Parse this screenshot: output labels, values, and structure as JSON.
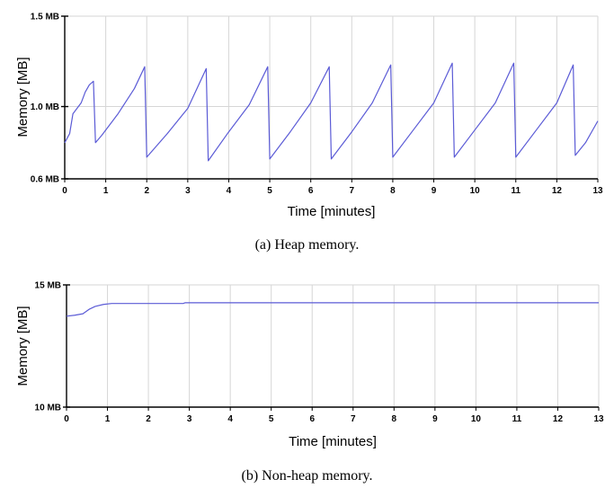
{
  "colors": {
    "series": "#5b5bd6",
    "grid": "#d6d6d6",
    "axis": "#000000"
  },
  "chart_data": [
    {
      "type": "line",
      "caption": "(a) Heap memory.",
      "xlabel": "Time [minutes]",
      "ylabel": "Memory [MB]",
      "xlim": [
        0,
        13
      ],
      "ylim": [
        0.6,
        1.5
      ],
      "x_ticks": [
        0,
        1,
        2,
        3,
        4,
        5,
        6,
        7,
        8,
        9,
        10,
        11,
        12,
        13
      ],
      "y_ticks": [
        {
          "value": 0.6,
          "label": "0.6 MB"
        },
        {
          "value": 1.0,
          "label": "1.0 MB"
        },
        {
          "value": 1.5,
          "label": "1.5 MB"
        }
      ],
      "grid": true,
      "series": [
        {
          "x": [
            0,
            0.12,
            0.2,
            0.4,
            0.5,
            0.6,
            0.7,
            0.75,
            0.9,
            1.3,
            1.7,
            1.95,
            2.0,
            2.5,
            3.0,
            3.45,
            3.5,
            4.0,
            4.5,
            4.95,
            5.0,
            5.5,
            6.0,
            6.45,
            6.5,
            7.0,
            7.5,
            7.95,
            8.0,
            8.5,
            9.0,
            9.45,
            9.5,
            10.0,
            10.5,
            10.95,
            11.0,
            11.5,
            12.0,
            12.4,
            12.45,
            12.7,
            13.0
          ],
          "y": [
            0.8,
            0.85,
            0.96,
            1.02,
            1.08,
            1.12,
            1.14,
            0.8,
            0.84,
            0.96,
            1.1,
            1.22,
            0.72,
            0.85,
            0.99,
            1.21,
            0.7,
            0.86,
            1.01,
            1.22,
            0.71,
            0.86,
            1.02,
            1.22,
            0.71,
            0.86,
            1.02,
            1.23,
            0.72,
            0.87,
            1.02,
            1.24,
            0.72,
            0.87,
            1.02,
            1.24,
            0.72,
            0.87,
            1.02,
            1.23,
            0.73,
            0.8,
            0.92
          ]
        }
      ]
    },
    {
      "type": "line",
      "caption": "(b) Non-heap memory.",
      "xlabel": "Time [minutes]",
      "ylabel": "Memory [MB]",
      "xlim": [
        0,
        13
      ],
      "ylim": [
        10,
        15
      ],
      "x_ticks": [
        0,
        1,
        2,
        3,
        4,
        5,
        6,
        7,
        8,
        9,
        10,
        11,
        12,
        13
      ],
      "y_ticks": [
        {
          "value": 10,
          "label": "10 MB"
        },
        {
          "value": 15,
          "label": "15 MB"
        }
      ],
      "grid": true,
      "series": [
        {
          "x": [
            0,
            0.2,
            0.4,
            0.55,
            0.7,
            0.9,
            1.1,
            2.85,
            2.9,
            13
          ],
          "y": [
            13.72,
            13.76,
            13.82,
            14.0,
            14.12,
            14.2,
            14.24,
            14.24,
            14.27,
            14.27
          ]
        }
      ]
    }
  ]
}
